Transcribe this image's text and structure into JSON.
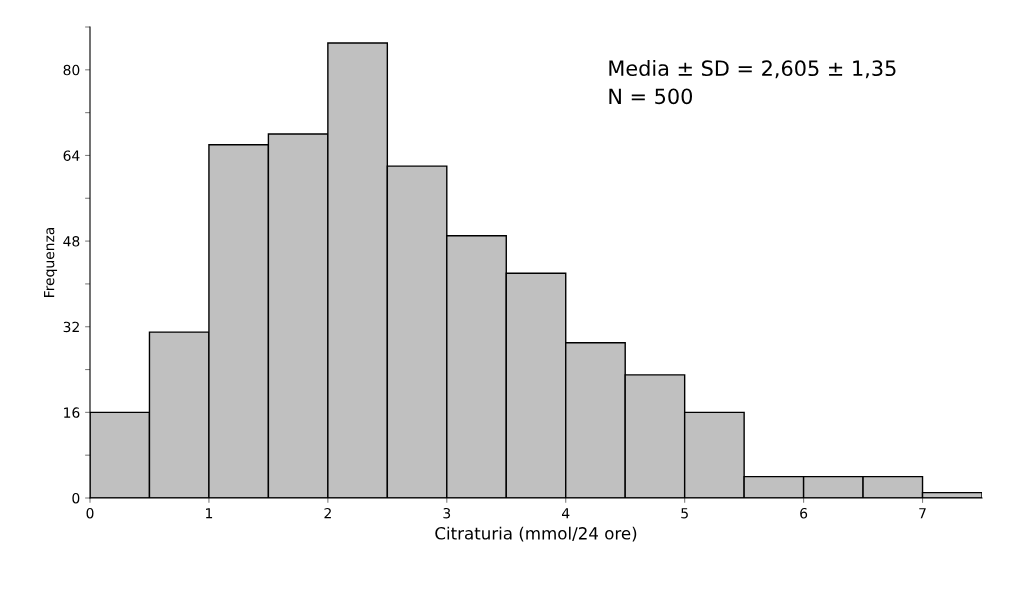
{
  "chart_data": {
    "type": "histogram",
    "xlabel": "Citraturia (mmol/24 ore)",
    "ylabel": "Frequenza",
    "bins": [
      0,
      0.5,
      1,
      1.5,
      2,
      2.5,
      3,
      3.5,
      4,
      4.5,
      5,
      5.5,
      6,
      6.5,
      7,
      7.5
    ],
    "values": [
      16,
      31,
      66,
      68,
      85,
      62,
      49,
      42,
      29,
      23,
      16,
      4,
      4,
      4,
      1
    ],
    "color": "#c0c0c0",
    "xlim": [
      0,
      7.5
    ],
    "xticks": [
      0,
      1,
      2,
      3,
      4,
      5,
      6,
      7
    ],
    "ylim": [
      0,
      88
    ],
    "yticks": [
      0,
      {
        "value": 8,
        "label": null
      },
      16,
      {
        "value": 24,
        "label": null
      },
      32,
      {
        "value": 40,
        "label": null
      },
      48,
      {
        "value": 56,
        "label": null
      },
      64,
      {
        "value": 72,
        "label": null
      },
      80,
      {
        "value": 88,
        "label": null
      }
    ],
    "grid": false,
    "annotations": [
      "Media ± SD = 2,605 ± 1,35\nN = 500"
    ]
  }
}
